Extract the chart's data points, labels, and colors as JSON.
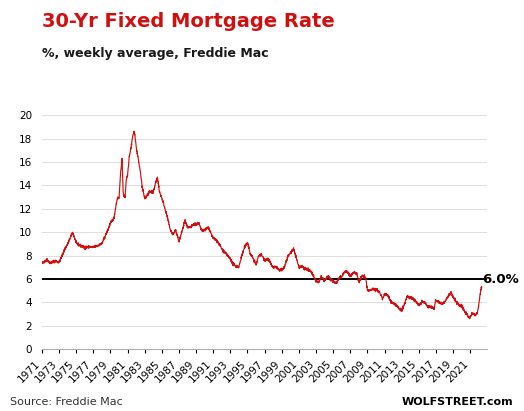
{
  "title": "30-Yr Fixed Mortgage Rate",
  "subtitle": "%, weekly average, Freddie Mac",
  "source_left": "Source: Freddie Mac",
  "source_right": "WOLFSTREET.com",
  "line_color": "#d01010",
  "hline_value": 6.0,
  "hline_label": "6.0%",
  "hline_color": "#000000",
  "title_color": "#d01010",
  "subtitle_color": "#1a1a1a",
  "background_color": "#ffffff",
  "ylim": [
    0,
    20
  ],
  "yticks": [
    0,
    2,
    4,
    6,
    8,
    10,
    12,
    14,
    16,
    18,
    20
  ],
  "xtick_years": [
    1971,
    1973,
    1975,
    1977,
    1979,
    1981,
    1983,
    1985,
    1987,
    1989,
    1991,
    1993,
    1995,
    1997,
    1999,
    2001,
    2003,
    2005,
    2007,
    2009,
    2011,
    2013,
    2015,
    2017,
    2019,
    2021
  ],
  "grid_color": "#d8d8d8",
  "title_fontsize": 14,
  "subtitle_fontsize": 9,
  "tick_fontsize": 7.5,
  "source_fontsize": 8,
  "anchors": [
    [
      1971.0,
      7.33
    ],
    [
      1971.3,
      7.5
    ],
    [
      1971.6,
      7.65
    ],
    [
      1972.0,
      7.37
    ],
    [
      1972.5,
      7.55
    ],
    [
      1973.0,
      7.44
    ],
    [
      1973.3,
      7.9
    ],
    [
      1973.7,
      8.6
    ],
    [
      1974.0,
      9.0
    ],
    [
      1974.3,
      9.5
    ],
    [
      1974.6,
      10.0
    ],
    [
      1975.0,
      9.05
    ],
    [
      1975.5,
      8.85
    ],
    [
      1976.0,
      8.7
    ],
    [
      1976.5,
      8.75
    ],
    [
      1977.0,
      8.72
    ],
    [
      1977.5,
      8.85
    ],
    [
      1978.0,
      9.02
    ],
    [
      1978.5,
      9.85
    ],
    [
      1979.0,
      10.78
    ],
    [
      1979.4,
      11.2
    ],
    [
      1979.8,
      12.9
    ],
    [
      1980.0,
      12.88
    ],
    [
      1980.2,
      15.1
    ],
    [
      1980.35,
      16.35
    ],
    [
      1980.5,
      13.2
    ],
    [
      1980.7,
      13.0
    ],
    [
      1980.85,
      14.5
    ],
    [
      1981.0,
      14.9
    ],
    [
      1981.2,
      16.5
    ],
    [
      1981.4,
      17.2
    ],
    [
      1981.55,
      18.0
    ],
    [
      1981.75,
      18.63
    ],
    [
      1981.9,
      18.1
    ],
    [
      1982.0,
      17.3
    ],
    [
      1982.3,
      16.0
    ],
    [
      1982.5,
      15.1
    ],
    [
      1982.7,
      13.9
    ],
    [
      1982.9,
      13.2
    ],
    [
      1983.0,
      12.85
    ],
    [
      1983.3,
      13.2
    ],
    [
      1983.5,
      13.4
    ],
    [
      1983.8,
      13.5
    ],
    [
      1984.0,
      13.4
    ],
    [
      1984.3,
      14.3
    ],
    [
      1984.5,
      14.67
    ],
    [
      1984.7,
      13.5
    ],
    [
      1985.0,
      12.92
    ],
    [
      1985.3,
      12.2
    ],
    [
      1985.6,
      11.4
    ],
    [
      1986.0,
      10.18
    ],
    [
      1986.3,
      9.8
    ],
    [
      1986.6,
      10.2
    ],
    [
      1987.0,
      9.2
    ],
    [
      1987.4,
      10.2
    ],
    [
      1987.7,
      11.0
    ],
    [
      1988.0,
      10.35
    ],
    [
      1988.4,
      10.45
    ],
    [
      1988.8,
      10.7
    ],
    [
      1989.0,
      10.67
    ],
    [
      1989.3,
      10.8
    ],
    [
      1989.6,
      10.2
    ],
    [
      1990.0,
      10.19
    ],
    [
      1990.4,
      10.4
    ],
    [
      1990.8,
      9.8
    ],
    [
      1991.0,
      9.5
    ],
    [
      1991.4,
      9.3
    ],
    [
      1991.8,
      8.85
    ],
    [
      1992.0,
      8.57
    ],
    [
      1992.4,
      8.2
    ],
    [
      1992.7,
      8.0
    ],
    [
      1993.0,
      7.7
    ],
    [
      1993.3,
      7.3
    ],
    [
      1993.6,
      7.1
    ],
    [
      1994.0,
      7.05
    ],
    [
      1994.3,
      7.9
    ],
    [
      1994.6,
      8.6
    ],
    [
      1995.0,
      9.15
    ],
    [
      1995.3,
      8.2
    ],
    [
      1995.7,
      7.7
    ],
    [
      1996.0,
      7.2
    ],
    [
      1996.3,
      8.0
    ],
    [
      1996.6,
      8.1
    ],
    [
      1997.0,
      7.65
    ],
    [
      1997.4,
      7.7
    ],
    [
      1997.8,
      7.2
    ],
    [
      1998.0,
      6.99
    ],
    [
      1998.4,
      7.0
    ],
    [
      1998.7,
      6.73
    ],
    [
      1999.0,
      6.79
    ],
    [
      1999.3,
      7.0
    ],
    [
      1999.7,
      7.9
    ],
    [
      2000.0,
      8.21
    ],
    [
      2000.4,
      8.6
    ],
    [
      2000.7,
      7.8
    ],
    [
      2001.0,
      7.03
    ],
    [
      2001.4,
      7.1
    ],
    [
      2001.7,
      6.9
    ],
    [
      2002.0,
      6.8
    ],
    [
      2002.4,
      6.65
    ],
    [
      2002.8,
      6.1
    ],
    [
      2003.0,
      5.84
    ],
    [
      2003.3,
      5.7
    ],
    [
      2003.6,
      6.2
    ],
    [
      2004.0,
      5.85
    ],
    [
      2004.4,
      6.25
    ],
    [
      2004.8,
      5.9
    ],
    [
      2005.0,
      5.77
    ],
    [
      2005.4,
      5.7
    ],
    [
      2005.8,
      6.2
    ],
    [
      2006.0,
      6.22
    ],
    [
      2006.4,
      6.7
    ],
    [
      2006.8,
      6.5
    ],
    [
      2007.0,
      6.22
    ],
    [
      2007.4,
      6.6
    ],
    [
      2007.8,
      6.4
    ],
    [
      2008.0,
      5.76
    ],
    [
      2008.4,
      6.3
    ],
    [
      2008.8,
      6.1
    ],
    [
      2009.0,
      5.05
    ],
    [
      2009.3,
      5.0
    ],
    [
      2009.6,
      5.2
    ],
    [
      2010.0,
      5.09
    ],
    [
      2010.4,
      4.9
    ],
    [
      2010.8,
      4.3
    ],
    [
      2011.0,
      4.76
    ],
    [
      2011.4,
      4.6
    ],
    [
      2011.8,
      4.0
    ],
    [
      2012.0,
      3.95
    ],
    [
      2012.4,
      3.75
    ],
    [
      2012.8,
      3.4
    ],
    [
      2013.0,
      3.34
    ],
    [
      2013.3,
      3.8
    ],
    [
      2013.6,
      4.5
    ],
    [
      2014.0,
      4.43
    ],
    [
      2014.4,
      4.3
    ],
    [
      2014.8,
      4.0
    ],
    [
      2015.0,
      3.73
    ],
    [
      2015.4,
      4.05
    ],
    [
      2015.8,
      3.95
    ],
    [
      2016.0,
      3.65
    ],
    [
      2016.4,
      3.65
    ],
    [
      2016.8,
      3.47
    ],
    [
      2016.95,
      4.2
    ],
    [
      2017.0,
      4.2
    ],
    [
      2017.4,
      4.0
    ],
    [
      2017.8,
      3.9
    ],
    [
      2018.0,
      4.03
    ],
    [
      2018.4,
      4.5
    ],
    [
      2018.8,
      4.85
    ],
    [
      2019.0,
      4.45
    ],
    [
      2019.4,
      4.0
    ],
    [
      2019.8,
      3.7
    ],
    [
      2020.0,
      3.72
    ],
    [
      2020.2,
      3.5
    ],
    [
      2020.4,
      3.15
    ],
    [
      2020.6,
      2.98
    ],
    [
      2020.85,
      2.72
    ],
    [
      2021.0,
      2.77
    ],
    [
      2021.2,
      3.08
    ],
    [
      2021.4,
      3.0
    ],
    [
      2021.6,
      2.87
    ],
    [
      2021.8,
      3.05
    ],
    [
      2022.0,
      3.76
    ],
    [
      2022.15,
      4.67
    ],
    [
      2022.3,
      5.3
    ]
  ]
}
